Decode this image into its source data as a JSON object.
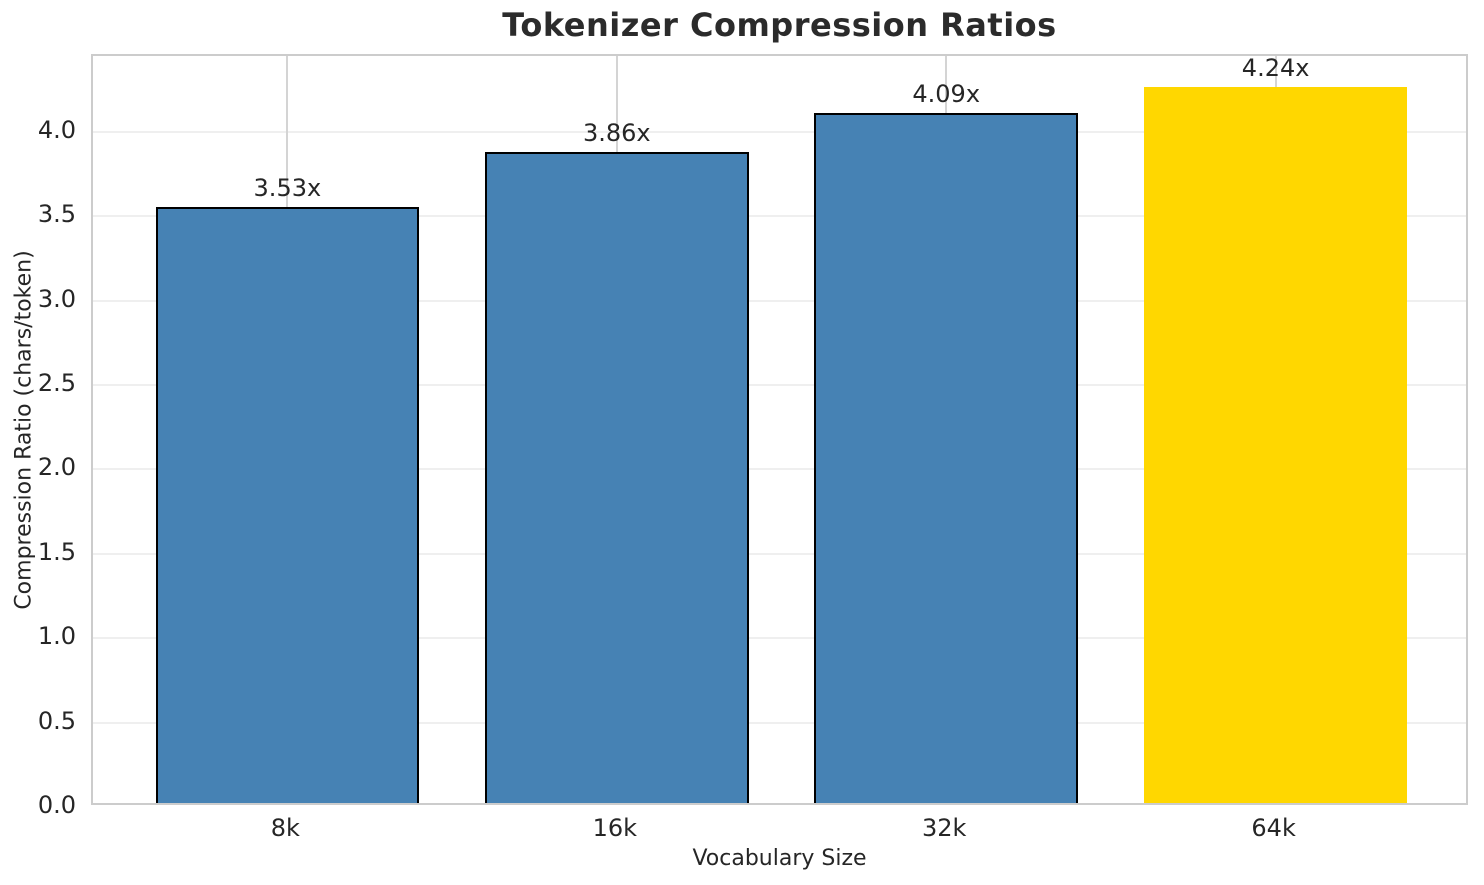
{
  "figure": {
    "title": "Tokenizer Compression Ratios"
  },
  "chart_data": {
    "type": "bar",
    "title": "Tokenizer Compression Ratios",
    "xlabel": "Vocabulary Size",
    "ylabel": "Compression Ratio (chars/token)",
    "categories": [
      "8k",
      "16k",
      "32k",
      "64k"
    ],
    "values": [
      3.53,
      3.86,
      4.09,
      4.24
    ],
    "bar_labels": [
      "3.53x",
      "3.86x",
      "4.09x",
      "4.24x"
    ],
    "colors": [
      "#4682b4",
      "#4682b4",
      "#4682b4",
      "#ffd700"
    ],
    "edge_colors": [
      "#000000",
      "#000000",
      "#000000",
      "none"
    ],
    "highlight_index": 3,
    "ylim": [
      0,
      4.45
    ],
    "xlim": [
      -0.59,
      3.59
    ],
    "yticks": [
      0.0,
      0.5,
      1.0,
      1.5,
      2.0,
      2.5,
      3.0,
      3.5,
      4.0
    ],
    "bar_width": 0.8,
    "grid": {
      "horizontal": true,
      "vertical": true
    },
    "legend": "none"
  },
  "style": {
    "bar_blue": "#4682b4",
    "bar_gold": "#ffd700",
    "grid_h_color": "#efefef",
    "grid_v_color": "#d4d4d4",
    "spine_color": "#cccccc",
    "text_color": "#262626",
    "background": "#ffffff"
  }
}
